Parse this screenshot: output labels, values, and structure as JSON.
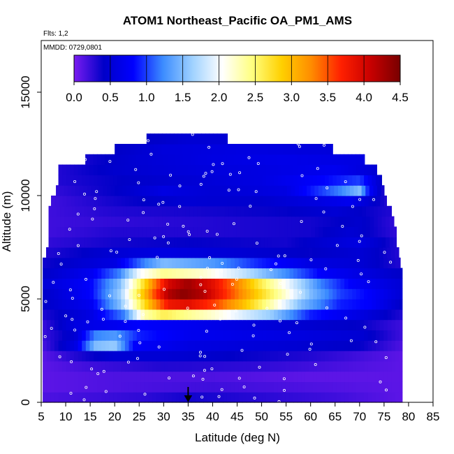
{
  "chart_data": {
    "type": "heatmap",
    "title": "ATOM1 Northeast_Pacific OA_PM1_AMS",
    "annotations": [
      "Flts: 1,2",
      "MMDD: 0729,0801"
    ],
    "xlabel": "Latitude (deg N)",
    "ylabel": "Altitude (m)",
    "xlim": [
      5,
      85
    ],
    "ylim": [
      0,
      17500
    ],
    "x_ticks": [
      5,
      10,
      15,
      20,
      25,
      30,
      35,
      40,
      45,
      50,
      55,
      60,
      65,
      70,
      75,
      80,
      85
    ],
    "y_ticks": [
      0,
      5000,
      10000,
      15000
    ],
    "colorbar": {
      "min": 0.0,
      "max": 4.5,
      "ticks": [
        "0.0",
        "0.5",
        "1.0",
        "1.5",
        "2.0",
        "2.5",
        "3.0",
        "3.5",
        "4.0",
        "4.5"
      ],
      "colors": [
        "#7a1cf0",
        "#0000c8",
        "#0000ff",
        "#3c8cff",
        "#a0d2ff",
        "#ffffff",
        "#ffff80",
        "#ffd000",
        "#ff8c00",
        "#ff2000",
        "#c80000",
        "#780000"
      ]
    },
    "marker_latitude": 35,
    "rows": [
      {
        "alt": 0,
        "lat_range": [
          5.3,
          78.7
        ],
        "values": [
          [
            5,
            0.15
          ],
          [
            25,
            0.25
          ],
          [
            35,
            0.35
          ],
          [
            45,
            0.3
          ],
          [
            65,
            0.2
          ],
          [
            78.7,
            0.1
          ]
        ]
      },
      {
        "alt": 500,
        "lat_range": [
          5.3,
          78.7
        ],
        "values": [
          [
            5,
            0.1
          ],
          [
            20,
            0.15
          ],
          [
            40,
            0.2
          ],
          [
            60,
            0.15
          ],
          [
            78.7,
            0.1
          ]
        ]
      },
      {
        "alt": 1000,
        "lat_range": [
          5.3,
          78.7
        ],
        "values": [
          [
            5,
            0.1
          ],
          [
            20,
            0.15
          ],
          [
            40,
            0.15
          ],
          [
            60,
            0.1
          ],
          [
            78.7,
            0.1
          ]
        ]
      },
      {
        "alt": 1500,
        "lat_range": [
          5.3,
          78.7
        ],
        "values": [
          [
            5,
            0.1
          ],
          [
            15,
            0.2
          ],
          [
            30,
            0.3
          ],
          [
            50,
            0.25
          ],
          [
            78.7,
            0.1
          ]
        ]
      },
      {
        "alt": 2000,
        "lat_range": [
          5.3,
          78.7
        ],
        "values": [
          [
            5,
            0.1
          ],
          [
            12,
            0.3
          ],
          [
            20,
            0.5
          ],
          [
            30,
            0.5
          ],
          [
            45,
            0.4
          ],
          [
            60,
            0.3
          ],
          [
            78.7,
            0.1
          ]
        ]
      },
      {
        "alt": 2500,
        "lat_range": [
          5.3,
          78.7
        ],
        "values": [
          [
            5,
            0.15
          ],
          [
            12,
            0.6
          ],
          [
            16,
            1.5
          ],
          [
            20,
            1.6
          ],
          [
            24,
            0.8
          ],
          [
            35,
            0.6
          ],
          [
            55,
            0.5
          ],
          [
            70,
            0.4
          ],
          [
            78.7,
            0.15
          ]
        ]
      },
      {
        "alt": 3000,
        "lat_range": [
          5.3,
          78.7
        ],
        "values": [
          [
            5,
            0.2
          ],
          [
            12,
            0.5
          ],
          [
            16,
            1.2
          ],
          [
            20,
            1.3
          ],
          [
            25,
            0.9
          ],
          [
            35,
            0.7
          ],
          [
            55,
            0.6
          ],
          [
            70,
            0.5
          ],
          [
            78.7,
            0.2
          ]
        ]
      },
      {
        "alt": 3500,
        "lat_range": [
          5.3,
          78.7
        ],
        "values": [
          [
            5,
            0.2
          ],
          [
            12,
            0.6
          ],
          [
            20,
            0.7
          ],
          [
            25,
            0.8
          ],
          [
            35,
            0.7
          ],
          [
            55,
            0.5
          ],
          [
            70,
            0.4
          ],
          [
            78.7,
            0.2
          ]
        ]
      },
      {
        "alt": 4000,
        "lat_range": [
          5.3,
          78.7
        ],
        "values": [
          [
            5,
            0.3
          ],
          [
            15,
            0.6
          ],
          [
            22,
            1.2
          ],
          [
            26,
            2.3
          ],
          [
            30,
            2.6
          ],
          [
            40,
            2.2
          ],
          [
            52,
            1.6
          ],
          [
            60,
            0.9
          ],
          [
            70,
            0.6
          ],
          [
            78.7,
            0.3
          ]
        ]
      },
      {
        "alt": 4500,
        "lat_range": [
          5.3,
          78.7
        ],
        "values": [
          [
            5,
            0.4
          ],
          [
            15,
            0.7
          ],
          [
            21,
            1.5
          ],
          [
            25,
            2.5
          ],
          [
            28,
            3.2
          ],
          [
            31,
            3.8
          ],
          [
            35,
            3.9
          ],
          [
            40,
            3.6
          ],
          [
            46,
            3.0
          ],
          [
            52,
            2.3
          ],
          [
            58,
            1.5
          ],
          [
            66,
            0.9
          ],
          [
            72,
            0.8
          ],
          [
            78.7,
            0.4
          ]
        ]
      },
      {
        "alt": 5000,
        "lat_range": [
          5.3,
          78.7
        ],
        "values": [
          [
            5,
            0.4
          ],
          [
            15,
            0.8
          ],
          [
            21,
            1.6
          ],
          [
            25,
            2.7
          ],
          [
            28,
            3.5
          ],
          [
            31,
            4.2
          ],
          [
            34,
            4.4
          ],
          [
            38,
            4.2
          ],
          [
            43,
            3.6
          ],
          [
            48,
            3.0
          ],
          [
            54,
            2.3
          ],
          [
            60,
            1.5
          ],
          [
            66,
            1.0
          ],
          [
            72,
            0.8
          ],
          [
            78.7,
            0.5
          ]
        ]
      },
      {
        "alt": 5500,
        "lat_range": [
          5.3,
          78.7
        ],
        "values": [
          [
            5,
            0.5
          ],
          [
            15,
            0.8
          ],
          [
            21,
            1.5
          ],
          [
            25,
            2.5
          ],
          [
            28,
            3.3
          ],
          [
            31,
            4.0
          ],
          [
            35,
            4.3
          ],
          [
            40,
            3.9
          ],
          [
            45,
            3.3
          ],
          [
            50,
            2.6
          ],
          [
            56,
            1.9
          ],
          [
            62,
            1.2
          ],
          [
            68,
            0.8
          ],
          [
            78.7,
            0.5
          ]
        ]
      },
      {
        "alt": 6000,
        "lat_range": [
          5.3,
          78.7
        ],
        "values": [
          [
            5,
            0.4
          ],
          [
            15,
            0.7
          ],
          [
            21,
            1.2
          ],
          [
            25,
            2.0
          ],
          [
            30,
            2.4
          ],
          [
            38,
            2.2
          ],
          [
            46,
            1.8
          ],
          [
            54,
            1.3
          ],
          [
            62,
            0.8
          ],
          [
            70,
            0.6
          ],
          [
            78.7,
            0.4
          ]
        ]
      },
      {
        "alt": 6500,
        "lat_range": [
          5.3,
          78.3
        ],
        "values": [
          [
            5,
            0.35
          ],
          [
            20,
            0.6
          ],
          [
            26,
            1.2
          ],
          [
            30,
            1.5
          ],
          [
            40,
            1.3
          ],
          [
            50,
            0.9
          ],
          [
            60,
            0.6
          ],
          [
            70,
            0.5
          ],
          [
            78.3,
            0.3
          ]
        ]
      },
      {
        "alt": 7000,
        "lat_range": [
          6.0,
          78.0
        ],
        "values": [
          [
            6,
            0.3
          ],
          [
            20,
            0.5
          ],
          [
            30,
            0.6
          ],
          [
            45,
            0.5
          ],
          [
            60,
            0.4
          ],
          [
            70,
            0.5
          ],
          [
            78,
            0.3
          ]
        ]
      },
      {
        "alt": 7500,
        "lat_range": [
          6.5,
          77.5
        ],
        "values": [
          [
            6.5,
            0.25
          ],
          [
            20,
            0.35
          ],
          [
            35,
            0.4
          ],
          [
            55,
            0.35
          ],
          [
            70,
            0.6
          ],
          [
            77.5,
            0.3
          ]
        ]
      },
      {
        "alt": 8000,
        "lat_range": [
          6.5,
          77.5
        ],
        "values": [
          [
            6.5,
            0.2
          ],
          [
            20,
            0.3
          ],
          [
            40,
            0.3
          ],
          [
            60,
            0.35
          ],
          [
            68,
            0.5
          ],
          [
            77.5,
            0.25
          ]
        ]
      },
      {
        "alt": 8500,
        "lat_range": [
          6.5,
          77.0
        ],
        "values": [
          [
            6.5,
            0.2
          ],
          [
            20,
            0.25
          ],
          [
            40,
            0.3
          ],
          [
            60,
            0.35
          ],
          [
            70,
            0.45
          ],
          [
            77,
            0.25
          ]
        ]
      },
      {
        "alt": 9000,
        "lat_range": [
          6.5,
          76.5
        ],
        "values": [
          [
            6.5,
            0.2
          ],
          [
            20,
            0.3
          ],
          [
            40,
            0.35
          ],
          [
            55,
            0.4
          ],
          [
            65,
            0.5
          ],
          [
            76.5,
            0.3
          ]
        ]
      },
      {
        "alt": 9500,
        "lat_range": [
          7.0,
          75.5
        ],
        "values": [
          [
            7,
            0.2
          ],
          [
            20,
            0.35
          ],
          [
            35,
            0.5
          ],
          [
            50,
            0.45
          ],
          [
            62,
            0.6
          ],
          [
            68,
            0.7
          ],
          [
            75.5,
            0.3
          ]
        ]
      },
      {
        "alt": 10000,
        "lat_range": [
          8.0,
          75.0
        ],
        "values": [
          [
            8,
            0.25
          ],
          [
            20,
            0.4
          ],
          [
            30,
            0.6
          ],
          [
            40,
            0.5
          ],
          [
            55,
            0.6
          ],
          [
            66,
            1.2
          ],
          [
            70,
            1.5
          ],
          [
            72,
            0.8
          ],
          [
            75,
            0.3
          ]
        ]
      },
      {
        "alt": 10500,
        "lat_range": [
          8.5,
          74.5
        ],
        "values": [
          [
            8.5,
            0.3
          ],
          [
            20,
            0.4
          ],
          [
            35,
            0.5
          ],
          [
            50,
            0.6
          ],
          [
            62,
            0.8
          ],
          [
            70,
            1.0
          ],
          [
            74.5,
            0.4
          ]
        ]
      },
      {
        "alt": 11000,
        "lat_range": [
          8.5,
          73.5
        ],
        "values": [
          [
            8.5,
            0.3
          ],
          [
            20,
            0.45
          ],
          [
            35,
            0.55
          ],
          [
            50,
            0.6
          ],
          [
            65,
            0.7
          ],
          [
            73.5,
            0.5
          ]
        ]
      },
      {
        "alt": 11500,
        "lat_range": [
          14.0,
          71.0
        ],
        "values": [
          [
            14,
            0.35
          ],
          [
            25,
            0.5
          ],
          [
            40,
            0.6
          ],
          [
            55,
            0.65
          ],
          [
            71,
            0.6
          ]
        ]
      },
      {
        "alt": 12000,
        "lat_range": [
          20.0,
          64.5
        ],
        "values": [
          [
            20,
            0.4
          ],
          [
            30,
            0.55
          ],
          [
            45,
            0.6
          ],
          [
            64.5,
            0.55
          ]
        ]
      },
      {
        "alt": 12500,
        "lat_range": [
          26.5,
          43.0
        ],
        "values": [
          [
            26.5,
            0.4
          ],
          [
            35,
            0.5
          ],
          [
            43,
            0.5
          ]
        ]
      }
    ]
  }
}
